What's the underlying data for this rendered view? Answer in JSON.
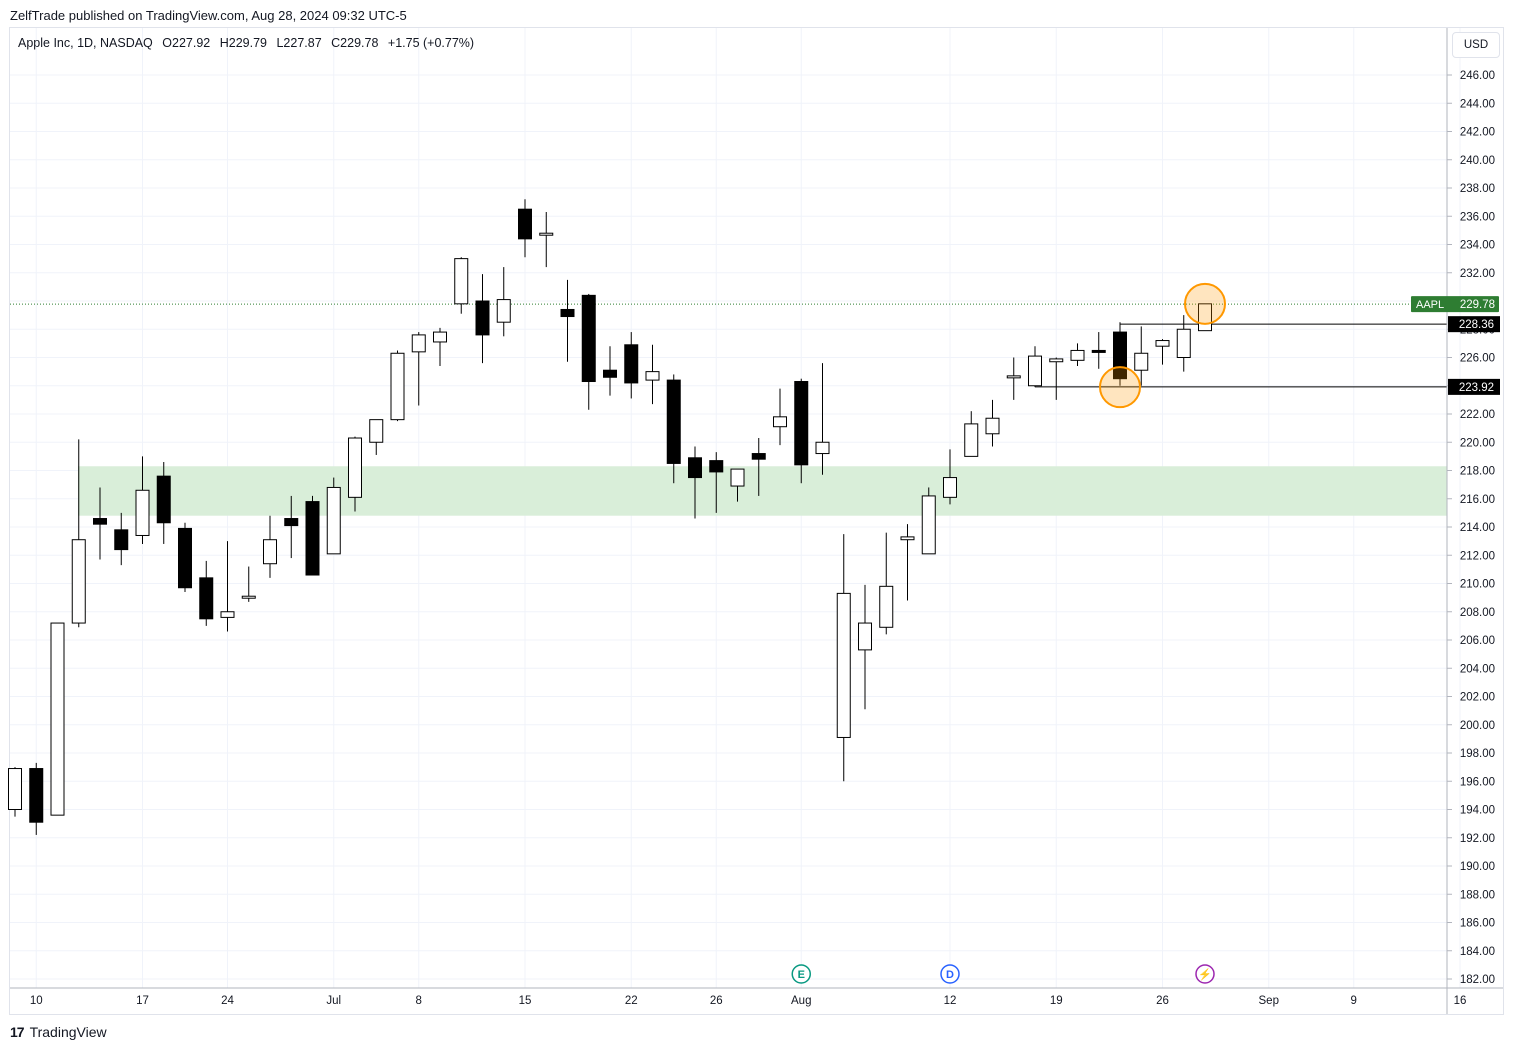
{
  "header": {
    "publisher_line": "ZelfTrade published on TradingView.com, Aug 28, 2024 09:32 UTC-5"
  },
  "legend": {
    "symbol": "Apple Inc, 1D, NASDAQ",
    "open": "O227.92",
    "high": "H229.79",
    "low": "L227.87",
    "close": "C229.78",
    "change": "+1.75 (+0.77%)"
  },
  "currency": "USD",
  "footer": {
    "brand": "TradingView",
    "logo": "17"
  },
  "colors": {
    "up_body": "#ffffff",
    "down_body": "#000000",
    "wick": "#000000",
    "zone": "#d9eed9",
    "price_tag": "#2e7d32",
    "highlight": "#ff9800"
  },
  "chart_data": {
    "type": "candlestick",
    "ylim": [
      181,
      248
    ],
    "y_ticks": [
      "246.00",
      "244.00",
      "242.00",
      "240.00",
      "238.00",
      "236.00",
      "234.00",
      "232.00",
      "230.00",
      "228.00",
      "226.00",
      "224.00",
      "222.00",
      "220.00",
      "218.00",
      "216.00",
      "214.00",
      "212.00",
      "210.00",
      "208.00",
      "206.00",
      "204.00",
      "202.00",
      "200.00",
      "198.00",
      "196.00",
      "194.00",
      "192.00",
      "190.00",
      "188.00",
      "186.00",
      "184.00",
      "182.00"
    ],
    "x_ticks": [
      {
        "label": "10",
        "index": 1
      },
      {
        "label": "17",
        "index": 6
      },
      {
        "label": "24",
        "index": 10
      },
      {
        "label": "Jul",
        "index": 15
      },
      {
        "label": "8",
        "index": 19
      },
      {
        "label": "15",
        "index": 24
      },
      {
        "label": "22",
        "index": 29
      },
      {
        "label": "26",
        "index": 33
      },
      {
        "label": "Aug",
        "index": 37
      },
      {
        "label": "12",
        "index": 44
      },
      {
        "label": "19",
        "index": 49
      },
      {
        "label": "26",
        "index": 54
      },
      {
        "label": "Sep",
        "index": 59
      },
      {
        "label": "9",
        "index": 63
      },
      {
        "label": "16",
        "index": 68
      }
    ],
    "candles": [
      {
        "o": 194.0,
        "h": 197.0,
        "l": 193.5,
        "c": 196.9
      },
      {
        "o": 196.9,
        "h": 197.3,
        "l": 192.2,
        "c": 193.1
      },
      {
        "o": 193.6,
        "h": 207.2,
        "l": 193.6,
        "c": 207.2
      },
      {
        "o": 207.2,
        "h": 220.2,
        "l": 206.9,
        "c": 213.1
      },
      {
        "o": 214.6,
        "h": 216.8,
        "l": 211.7,
        "c": 214.2
      },
      {
        "o": 213.8,
        "h": 215.0,
        "l": 211.3,
        "c": 212.4
      },
      {
        "o": 213.4,
        "h": 219.0,
        "l": 212.8,
        "c": 216.6
      },
      {
        "o": 217.6,
        "h": 218.6,
        "l": 212.8,
        "c": 214.3
      },
      {
        "o": 213.9,
        "h": 214.3,
        "l": 209.4,
        "c": 209.7
      },
      {
        "o": 210.4,
        "h": 211.6,
        "l": 207.0,
        "c": 207.5
      },
      {
        "o": 207.6,
        "h": 213.0,
        "l": 206.6,
        "c": 208.0
      },
      {
        "o": 209.1,
        "h": 211.2,
        "l": 208.7,
        "c": 209.1
      },
      {
        "o": 211.4,
        "h": 214.8,
        "l": 210.4,
        "c": 213.1
      },
      {
        "o": 214.6,
        "h": 216.2,
        "l": 211.8,
        "c": 214.1
      },
      {
        "o": 215.8,
        "h": 216.2,
        "l": 210.7,
        "c": 210.6
      },
      {
        "o": 212.1,
        "h": 217.5,
        "l": 212.1,
        "c": 216.8
      },
      {
        "o": 216.1,
        "h": 220.4,
        "l": 215.1,
        "c": 220.3
      },
      {
        "o": 220.0,
        "h": 221.6,
        "l": 219.1,
        "c": 221.6
      },
      {
        "o": 221.6,
        "h": 226.5,
        "l": 221.5,
        "c": 226.3
      },
      {
        "o": 226.4,
        "h": 227.8,
        "l": 222.6,
        "c": 227.6
      },
      {
        "o": 227.1,
        "h": 228.1,
        "l": 225.4,
        "c": 227.8
      },
      {
        "o": 229.8,
        "h": 233.1,
        "l": 229.1,
        "c": 233.0
      },
      {
        "o": 230.0,
        "h": 231.9,
        "l": 225.6,
        "c": 227.6
      },
      {
        "o": 228.5,
        "h": 232.4,
        "l": 227.5,
        "c": 230.1
      },
      {
        "o": 236.5,
        "h": 237.2,
        "l": 233.1,
        "c": 234.4
      },
      {
        "o": 234.8,
        "h": 236.3,
        "l": 232.4,
        "c": 234.8
      },
      {
        "o": 229.4,
        "h": 231.5,
        "l": 225.7,
        "c": 228.9
      },
      {
        "o": 230.4,
        "h": 230.5,
        "l": 222.3,
        "c": 224.3
      },
      {
        "o": 225.1,
        "h": 226.8,
        "l": 223.3,
        "c": 224.6
      },
      {
        "o": 226.9,
        "h": 227.8,
        "l": 223.1,
        "c": 224.2
      },
      {
        "o": 224.4,
        "h": 226.9,
        "l": 222.7,
        "c": 225.0
      },
      {
        "o": 224.4,
        "h": 224.8,
        "l": 217.1,
        "c": 218.5
      },
      {
        "o": 218.9,
        "h": 219.7,
        "l": 214.6,
        "c": 217.5
      },
      {
        "o": 218.7,
        "h": 219.3,
        "l": 215.0,
        "c": 217.9
      },
      {
        "o": 216.9,
        "h": 218.1,
        "l": 215.8,
        "c": 218.1
      },
      {
        "o": 219.2,
        "h": 220.3,
        "l": 216.2,
        "c": 218.8
      },
      {
        "o": 221.1,
        "h": 223.8,
        "l": 219.8,
        "c": 221.8
      },
      {
        "o": 224.3,
        "h": 224.5,
        "l": 217.1,
        "c": 218.4
      },
      {
        "o": 219.2,
        "h": 225.6,
        "l": 217.7,
        "c": 220.0
      },
      {
        "o": 199.1,
        "h": 213.5,
        "l": 196.0,
        "c": 209.3
      },
      {
        "o": 205.3,
        "h": 209.9,
        "l": 201.1,
        "c": 207.2
      },
      {
        "o": 206.9,
        "h": 213.6,
        "l": 206.4,
        "c": 209.8
      },
      {
        "o": 213.1,
        "h": 214.2,
        "l": 208.8,
        "c": 213.3
      },
      {
        "o": 212.1,
        "h": 216.8,
        "l": 212.1,
        "c": 216.2
      },
      {
        "o": 216.1,
        "h": 219.5,
        "l": 215.6,
        "c": 217.5
      },
      {
        "o": 219.0,
        "h": 222.2,
        "l": 219.0,
        "c": 221.3
      },
      {
        "o": 220.6,
        "h": 223.0,
        "l": 219.7,
        "c": 221.7
      },
      {
        "o": 224.6,
        "h": 226.0,
        "l": 223.0,
        "c": 224.7
      },
      {
        "o": 224.0,
        "h": 226.8,
        "l": 223.9,
        "c": 226.1
      },
      {
        "o": 225.7,
        "h": 226.0,
        "l": 223.0,
        "c": 225.9
      },
      {
        "o": 225.8,
        "h": 227.0,
        "l": 225.4,
        "c": 226.5
      },
      {
        "o": 226.5,
        "h": 227.8,
        "l": 225.2,
        "c": 226.4
      },
      {
        "o": 227.8,
        "h": 228.5,
        "l": 224.0,
        "c": 224.5
      },
      {
        "o": 225.1,
        "h": 228.2,
        "l": 224.0,
        "c": 226.3
      },
      {
        "o": 226.8,
        "h": 227.3,
        "l": 225.5,
        "c": 227.2
      },
      {
        "o": 226.0,
        "h": 229.0,
        "l": 225.0,
        "c": 228.0
      },
      {
        "o": 227.9,
        "h": 229.8,
        "l": 227.9,
        "c": 229.8
      }
    ],
    "zone": {
      "low": 214.8,
      "high": 218.3
    },
    "last_price": {
      "label": "AAPL",
      "value": "229.78",
      "y": 229.78
    },
    "levels": [
      {
        "value": "228.36",
        "y": 228.36,
        "from_index": 52
      },
      {
        "value": "223.92",
        "y": 223.92,
        "from_index": 48
      }
    ],
    "highlights": [
      {
        "index": 52,
        "y": 223.9
      },
      {
        "index": 56,
        "y": 229.8
      }
    ],
    "event_markers": [
      {
        "letter": "E",
        "index": 37,
        "color": "#089981"
      },
      {
        "letter": "D",
        "index": 44,
        "color": "#2962ff"
      },
      {
        "letter": "⚡",
        "index": 56,
        "color": "#9c27b0"
      }
    ]
  }
}
